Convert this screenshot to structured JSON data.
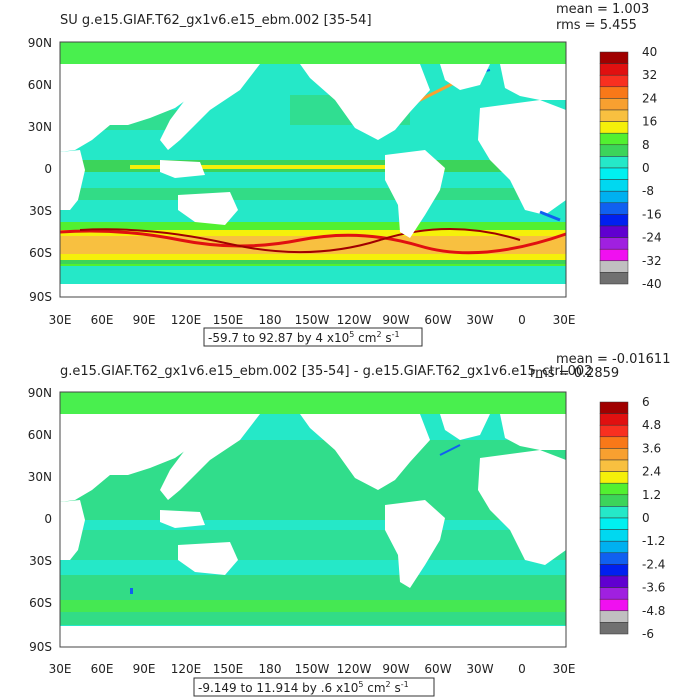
{
  "colors": {
    "land": "#ffffff",
    "ocean_base": "#25e8c8",
    "green": "#3cd45a",
    "light_green": "#52f030",
    "yellow": "#f5f00a",
    "orange": "#f8a030",
    "red": "#e01010",
    "dark_red": "#a00000",
    "blue": "#1060f0",
    "cyan": "#00d8f0"
  },
  "panels": [
    {
      "id": "top",
      "title": "SU g.e15.GIAF.T62_gx1v6.e15_ebm.002 [35-54]",
      "stats_mean": "mean = 1.003",
      "stats_rms": "rms = 5.455",
      "range_label": "-59.7 to 92.87 by 4 x10",
      "range_exp": "5",
      "range_units": " cm",
      "range_units_exp": "2",
      "range_units_tail": " s",
      "range_units_tail_exp": "-1",
      "lat_labels": [
        "90N",
        "60N",
        "30N",
        "0",
        "30S",
        "60S",
        "90S"
      ],
      "lon_labels": [
        "30E",
        "60E",
        "90E",
        "120E",
        "150E",
        "180",
        "150W",
        "120W",
        "90W",
        "60W",
        "30W",
        "0",
        "30E"
      ],
      "colorbar_labels": [
        "40",
        "32",
        "24",
        "16",
        "8",
        "0",
        "-8",
        "-16",
        "-24",
        "-32",
        "-40"
      ],
      "colorbar_colors": [
        "#a00000",
        "#e01010",
        "#f83020",
        "#f87818",
        "#f8a030",
        "#f8c040",
        "#f5f00a",
        "#52f030",
        "#3cd45a",
        "#25e8c8",
        "#00f0f0",
        "#00d8f0",
        "#00b0f0",
        "#1060f0",
        "#0020f0",
        "#6000d0",
        "#a020e0",
        "#f010f0",
        "#c0c0c0",
        "#707070"
      ]
    },
    {
      "id": "bottom",
      "title": "g.e15.GIAF.T62_gx1v6.e15_ebm.002 [35-54] - g.e15.GIAF.T62_gx1v6.e15_ctrl.002",
      "stats_mean": "mean = -0.01611",
      "stats_rms": "rms = 0.2859",
      "range_label": "-9.149 to 11.914 by .6 x10",
      "range_exp": "5",
      "range_units": " cm",
      "range_units_exp": "2",
      "range_units_tail": " s",
      "range_units_tail_exp": "-1",
      "lat_labels": [
        "90N",
        "60N",
        "30N",
        "0",
        "30S",
        "60S",
        "90S"
      ],
      "lon_labels": [
        "30E",
        "60E",
        "90E",
        "120E",
        "150E",
        "180",
        "150W",
        "120W",
        "90W",
        "60W",
        "30W",
        "0",
        "30E"
      ],
      "colorbar_labels": [
        "6",
        "4.8",
        "3.6",
        "2.4",
        "1.2",
        "0",
        "-1.2",
        "-2.4",
        "-3.6",
        "-4.8",
        "-6"
      ],
      "colorbar_colors": [
        "#a00000",
        "#e01010",
        "#f83020",
        "#f87818",
        "#f8a030",
        "#f8c040",
        "#f5f00a",
        "#52f030",
        "#3cd45a",
        "#25e8c8",
        "#00f0f0",
        "#00d8f0",
        "#00b0f0",
        "#1060f0",
        "#0020f0",
        "#6000d0",
        "#a020e0",
        "#f010f0",
        "#c0c0c0",
        "#707070"
      ]
    }
  ]
}
